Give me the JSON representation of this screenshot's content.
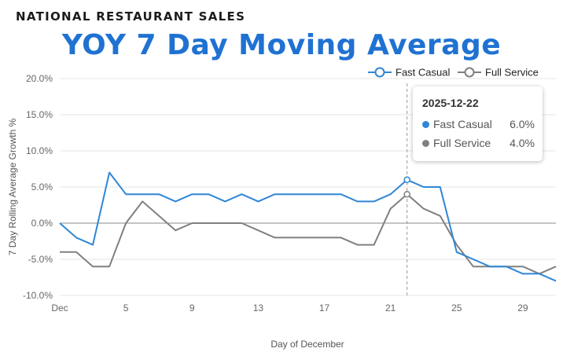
{
  "supertitle": "NATIONAL RESTAURANT SALES",
  "title": "YOY 7 Day Moving Average",
  "tooltip": {
    "date": "2025-12-22",
    "rows": [
      {
        "name": "Fast Casual",
        "value": "6.0%",
        "color": "#2f86d6"
      },
      {
        "name": "Full Service",
        "value": "4.0%",
        "color": "#808080"
      }
    ]
  },
  "chart_data": {
    "type": "line",
    "title": "YOY 7 Day Moving Average",
    "xlabel": "Day of December",
    "ylabel": "7 Day Rolling Average Growth %",
    "x": [
      1,
      2,
      3,
      4,
      5,
      6,
      7,
      8,
      9,
      10,
      11,
      12,
      13,
      14,
      15,
      16,
      17,
      18,
      19,
      20,
      21,
      22,
      23,
      24,
      25,
      26,
      27,
      28,
      29,
      30,
      31
    ],
    "xlim": [
      1,
      31
    ],
    "ylim": [
      -10,
      20
    ],
    "xticks": [
      1,
      5,
      9,
      13,
      17,
      21,
      25,
      29
    ],
    "xtick_labels": [
      "Dec",
      "5",
      "9",
      "13",
      "17",
      "21",
      "25",
      "29"
    ],
    "yticks": [
      -10,
      -5,
      0,
      5,
      10,
      15,
      20
    ],
    "ytick_labels": [
      "-10.0%",
      "-5.0%",
      "0.0%",
      "5.0%",
      "10.0%",
      "15.0%",
      "20.0%"
    ],
    "legend_position": "top-right",
    "highlight_x": 22,
    "series": [
      {
        "name": "Fast Casual",
        "color": "#2f86d6",
        "values": [
          0,
          -2,
          -3,
          7,
          4,
          4,
          4,
          3,
          4,
          4,
          3,
          4,
          3,
          4,
          4,
          4,
          4,
          4,
          3,
          3,
          4,
          6,
          5,
          5,
          -4,
          -5,
          -6,
          -6,
          -7,
          -7,
          -8
        ]
      },
      {
        "name": "Full Service",
        "color": "#808080",
        "values": [
          -4,
          -4,
          -6,
          -6,
          0,
          3,
          1,
          -1,
          0,
          0,
          0,
          0,
          -1,
          -2,
          -2,
          -2,
          -2,
          -2,
          -3,
          -3,
          2,
          4,
          2,
          1,
          -3,
          -6,
          -6,
          -6,
          -6,
          -7,
          -6
        ]
      }
    ]
  }
}
